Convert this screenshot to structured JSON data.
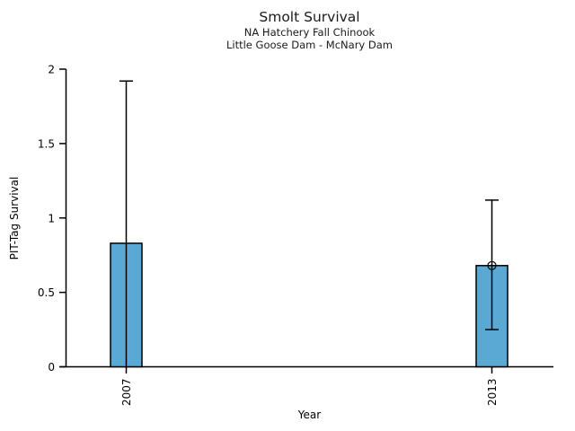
{
  "chart_data": {
    "type": "bar",
    "title": "Smolt Survival",
    "subtitle1": "NA Hatchery Fall Chinook",
    "subtitle2": "Little Goose Dam - McNary Dam",
    "xlabel": "Year",
    "ylabel": "PIT-Tag Survival",
    "categories": [
      "2007",
      "2013"
    ],
    "values": [
      0.83,
      0.68
    ],
    "error_bars": [
      {
        "low": 0,
        "high": 1.92,
        "low_cap": false,
        "high_cap": true
      },
      {
        "low": 0.25,
        "high": 1.12,
        "low_cap": true,
        "high_cap": true
      }
    ],
    "markers": [
      {
        "category": "2013",
        "value": 0.68,
        "shape": "open-circle"
      }
    ],
    "ylim": [
      0,
      2
    ],
    "yticks": [
      0,
      0.5,
      1,
      1.5,
      2
    ],
    "ytick_labels": [
      "0",
      "0.5",
      "1",
      "1.5",
      "2"
    ],
    "bar_color": "#5AA9D4",
    "bar_edge_color": "#000000",
    "axis_color": "#000000",
    "text_color": "#1a1a1a",
    "background": "#FFFFFF",
    "grid": false,
    "legend": "none"
  }
}
